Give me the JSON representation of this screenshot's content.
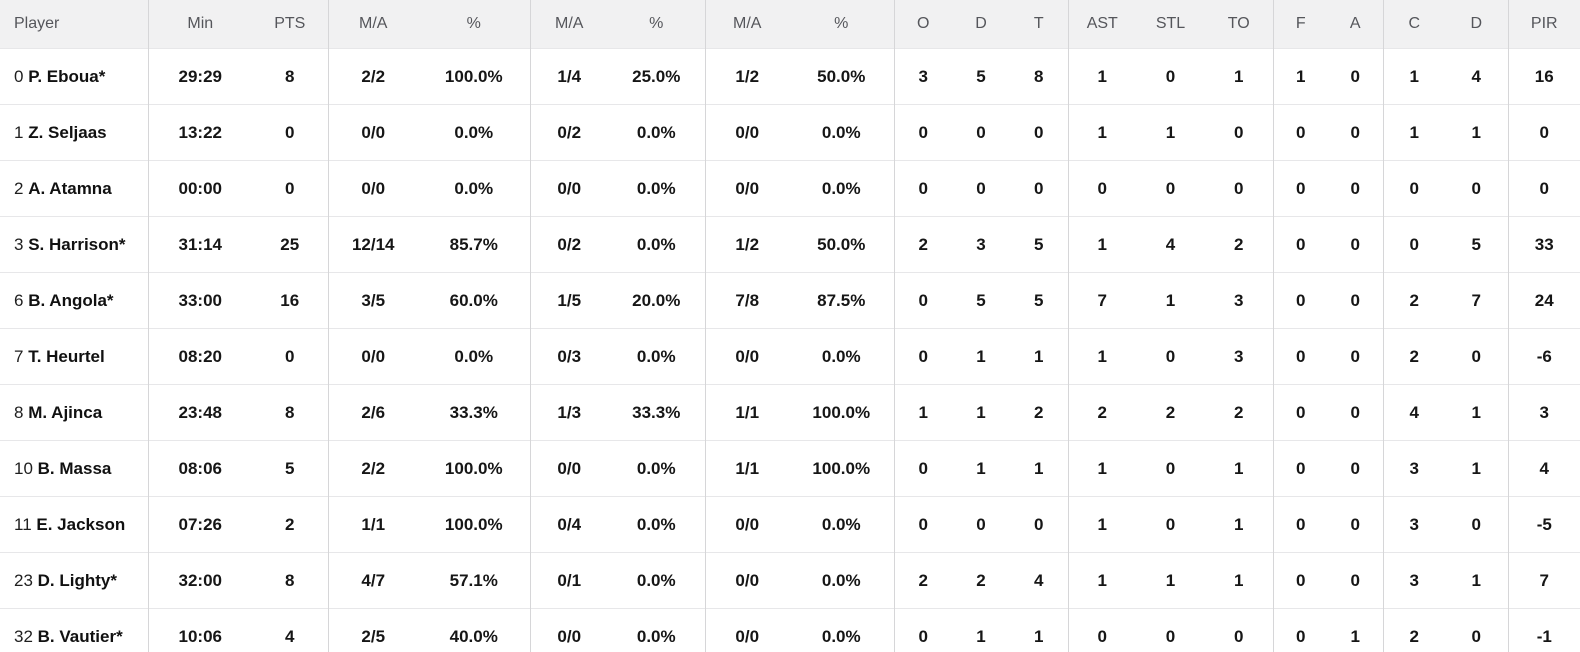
{
  "app": {
    "view_name": "box-score-player-stats-table"
  },
  "colors": {
    "header_bg": "#f1f1f2",
    "header_text": "#55565b",
    "row_bg": "#ffffff",
    "data_text": "#161616",
    "group_divider": "#d6d6d8",
    "row_border": "#e7e7e9"
  },
  "table": {
    "starter_mark": "*",
    "columns": [
      {
        "key": "player",
        "label": "Player"
      },
      {
        "key": "min",
        "label": "Min"
      },
      {
        "key": "pts",
        "label": "PTS"
      },
      {
        "key": "fg2_ma",
        "label": "M/A"
      },
      {
        "key": "fg2_pct",
        "label": "%"
      },
      {
        "key": "fg3_ma",
        "label": "M/A"
      },
      {
        "key": "fg3_pct",
        "label": "%"
      },
      {
        "key": "ft_ma",
        "label": "M/A"
      },
      {
        "key": "ft_pct",
        "label": "%"
      },
      {
        "key": "reb_o",
        "label": "O"
      },
      {
        "key": "reb_d",
        "label": "D"
      },
      {
        "key": "reb_t",
        "label": "T"
      },
      {
        "key": "ast",
        "label": "AST"
      },
      {
        "key": "stl",
        "label": "STL"
      },
      {
        "key": "to",
        "label": "TO"
      },
      {
        "key": "fouls_f",
        "label": "F"
      },
      {
        "key": "fouls_a",
        "label": "A"
      },
      {
        "key": "blk_c",
        "label": "C"
      },
      {
        "key": "blk_d",
        "label": "D"
      },
      {
        "key": "pir",
        "label": "PIR"
      }
    ],
    "rows": [
      {
        "number": "0",
        "name": "P. Eboua",
        "starter": true,
        "values": [
          "29:29",
          "8",
          "2/2",
          "100.0%",
          "1/4",
          "25.0%",
          "1/2",
          "50.0%",
          "3",
          "5",
          "8",
          "1",
          "0",
          "1",
          "1",
          "0",
          "1",
          "4",
          "16"
        ]
      },
      {
        "number": "1",
        "name": "Z. Seljaas",
        "starter": false,
        "values": [
          "13:22",
          "0",
          "0/0",
          "0.0%",
          "0/2",
          "0.0%",
          "0/0",
          "0.0%",
          "0",
          "0",
          "0",
          "1",
          "1",
          "0",
          "0",
          "0",
          "1",
          "1",
          "0"
        ]
      },
      {
        "number": "2",
        "name": "A. Atamna",
        "starter": false,
        "values": [
          "00:00",
          "0",
          "0/0",
          "0.0%",
          "0/0",
          "0.0%",
          "0/0",
          "0.0%",
          "0",
          "0",
          "0",
          "0",
          "0",
          "0",
          "0",
          "0",
          "0",
          "0",
          "0"
        ]
      },
      {
        "number": "3",
        "name": "S. Harrison",
        "starter": true,
        "values": [
          "31:14",
          "25",
          "12/14",
          "85.7%",
          "0/2",
          "0.0%",
          "1/2",
          "50.0%",
          "2",
          "3",
          "5",
          "1",
          "4",
          "2",
          "0",
          "0",
          "0",
          "5",
          "33"
        ]
      },
      {
        "number": "6",
        "name": "B. Angola",
        "starter": true,
        "values": [
          "33:00",
          "16",
          "3/5",
          "60.0%",
          "1/5",
          "20.0%",
          "7/8",
          "87.5%",
          "0",
          "5",
          "5",
          "7",
          "1",
          "3",
          "0",
          "0",
          "2",
          "7",
          "24"
        ]
      },
      {
        "number": "7",
        "name": "T. Heurtel",
        "starter": false,
        "values": [
          "08:20",
          "0",
          "0/0",
          "0.0%",
          "0/3",
          "0.0%",
          "0/0",
          "0.0%",
          "0",
          "1",
          "1",
          "1",
          "0",
          "3",
          "0",
          "0",
          "2",
          "0",
          "-6"
        ]
      },
      {
        "number": "8",
        "name": "M. Ajinca",
        "starter": false,
        "values": [
          "23:48",
          "8",
          "2/6",
          "33.3%",
          "1/3",
          "33.3%",
          "1/1",
          "100.0%",
          "1",
          "1",
          "2",
          "2",
          "2",
          "2",
          "0",
          "0",
          "4",
          "1",
          "3"
        ]
      },
      {
        "number": "10",
        "name": "B. Massa",
        "starter": false,
        "values": [
          "08:06",
          "5",
          "2/2",
          "100.0%",
          "0/0",
          "0.0%",
          "1/1",
          "100.0%",
          "0",
          "1",
          "1",
          "1",
          "0",
          "1",
          "0",
          "0",
          "3",
          "1",
          "4"
        ]
      },
      {
        "number": "11",
        "name": "E. Jackson",
        "starter": false,
        "values": [
          "07:26",
          "2",
          "1/1",
          "100.0%",
          "0/4",
          "0.0%",
          "0/0",
          "0.0%",
          "0",
          "0",
          "0",
          "1",
          "0",
          "1",
          "0",
          "0",
          "3",
          "0",
          "-5"
        ]
      },
      {
        "number": "23",
        "name": "D. Lighty",
        "starter": true,
        "values": [
          "32:00",
          "8",
          "4/7",
          "57.1%",
          "0/1",
          "0.0%",
          "0/0",
          "0.0%",
          "2",
          "2",
          "4",
          "1",
          "1",
          "1",
          "0",
          "0",
          "3",
          "1",
          "7"
        ]
      },
      {
        "number": "32",
        "name": "B. Vautier",
        "starter": true,
        "values": [
          "10:06",
          "4",
          "2/5",
          "40.0%",
          "0/0",
          "0.0%",
          "0/0",
          "0.0%",
          "0",
          "1",
          "1",
          "0",
          "0",
          "0",
          "0",
          "1",
          "2",
          "0",
          "-1"
        ]
      }
    ]
  }
}
